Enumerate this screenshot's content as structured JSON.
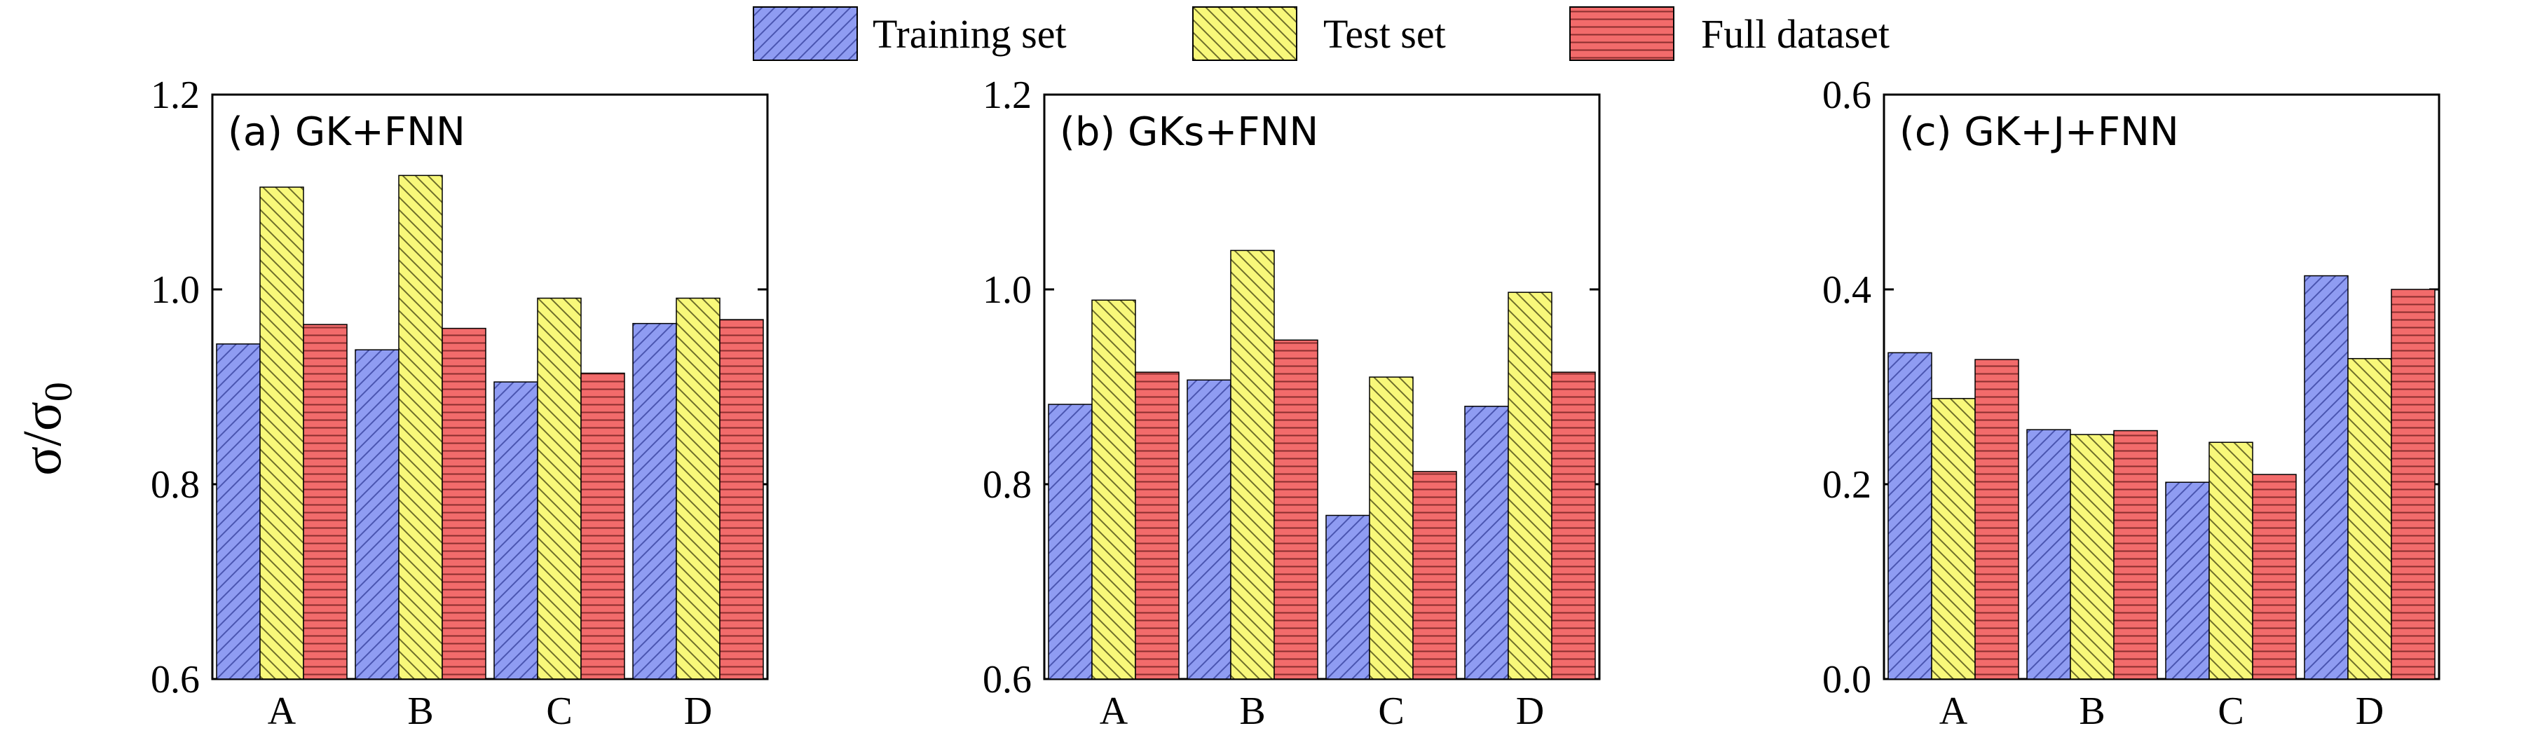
{
  "chart_data": {
    "type": "bar",
    "ylabel": "σ/σ0",
    "ylabel_main": "σ/σ",
    "ylabel_sub": "0",
    "legend": {
      "placement": "top",
      "entries": [
        {
          "name": "Training set",
          "color": "#8f9cf2",
          "pattern": "diagonal-up"
        },
        {
          "name": "Test set",
          "color": "#f8f87a",
          "pattern": "diagonal-down"
        },
        {
          "name": "Full dataset",
          "color": "#f26b6b",
          "pattern": "horizontal"
        }
      ]
    },
    "panels": [
      {
        "title": "(a) GK+FNN",
        "categories": [
          "A",
          "B",
          "C",
          "D"
        ],
        "ylim": [
          0.6,
          1.2
        ],
        "yticks": [
          "0.6",
          "0.8",
          "1.0",
          "1.2"
        ],
        "ytick_values": [
          0.6,
          0.8,
          1.0,
          1.2
        ],
        "series": [
          {
            "name": "Training set",
            "values": [
              0.944,
              0.938,
              0.905,
              0.965
            ]
          },
          {
            "name": "Test set",
            "values": [
              1.105,
              1.117,
              0.991,
              0.991
            ]
          },
          {
            "name": "Full dataset",
            "values": [
              0.964,
              0.96,
              0.914,
              0.969
            ]
          }
        ]
      },
      {
        "title": "(b) GKs+FNN",
        "categories": [
          "A",
          "B",
          "C",
          "D"
        ],
        "ylim": [
          0.6,
          1.2
        ],
        "yticks": [
          "0.6",
          "0.8",
          "1.0",
          "1.2"
        ],
        "ytick_values": [
          0.6,
          0.8,
          1.0,
          1.2
        ],
        "series": [
          {
            "name": "Training set",
            "values": [
              0.882,
              0.907,
              0.768,
              0.88
            ]
          },
          {
            "name": "Test set",
            "values": [
              0.989,
              1.04,
              0.91,
              0.997
            ]
          },
          {
            "name": "Full dataset",
            "values": [
              0.915,
              0.948,
              0.813,
              0.915
            ]
          }
        ]
      },
      {
        "title": "(c) GK+J+FNN",
        "categories": [
          "A",
          "B",
          "C",
          "D"
        ],
        "ylim": [
          0.0,
          0.6
        ],
        "yticks": [
          "0.0",
          "0.2",
          "0.4",
          "0.6"
        ],
        "ytick_values": [
          0.0,
          0.2,
          0.4,
          0.6
        ],
        "series": [
          {
            "name": "Training set",
            "values": [
              0.335,
              0.256,
              0.202,
              0.414
            ]
          },
          {
            "name": "Test set",
            "values": [
              0.288,
              0.251,
              0.243,
              0.329
            ]
          },
          {
            "name": "Full dataset",
            "values": [
              0.328,
              0.255,
              0.21,
              0.4
            ]
          }
        ]
      }
    ]
  }
}
